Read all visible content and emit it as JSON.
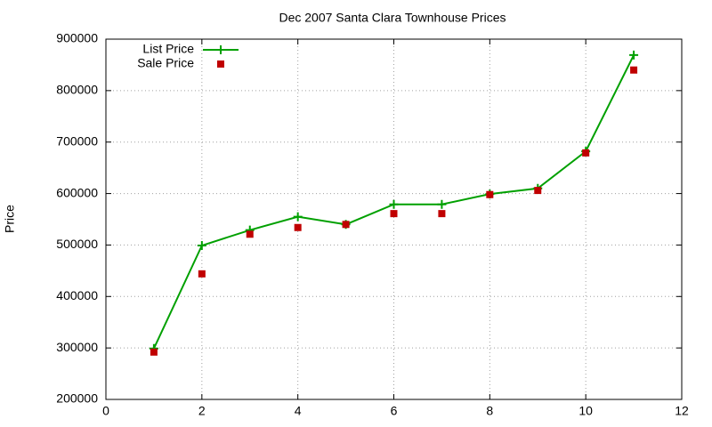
{
  "chart_data": {
    "type": "line",
    "title": "Dec 2007 Santa Clara Townhouse Prices",
    "y_label": "Price",
    "x": [
      1,
      2,
      3,
      4,
      5,
      6,
      7,
      8,
      9,
      10,
      11
    ],
    "series": [
      {
        "name": "List Price",
        "color": "#00a000",
        "line": true,
        "marker": "plus",
        "values": [
          299000,
          499000,
          529000,
          555000,
          540000,
          579000,
          579000,
          599000,
          610000,
          682000,
          869000
        ]
      },
      {
        "name": "Sale Price",
        "color": "#c00000",
        "line": false,
        "marker": "square",
        "values": [
          292000,
          444000,
          521000,
          534000,
          540000,
          561000,
          561000,
          598000,
          606000,
          679000,
          840000
        ]
      }
    ],
    "xlim": [
      0,
      12
    ],
    "xticks": [
      0,
      2,
      4,
      6,
      8,
      10,
      12
    ],
    "ylim": [
      200000,
      900000
    ],
    "yticks": [
      200000,
      300000,
      400000,
      500000,
      600000,
      700000,
      800000,
      900000
    ],
    "grid": true,
    "legend": "top-left"
  }
}
